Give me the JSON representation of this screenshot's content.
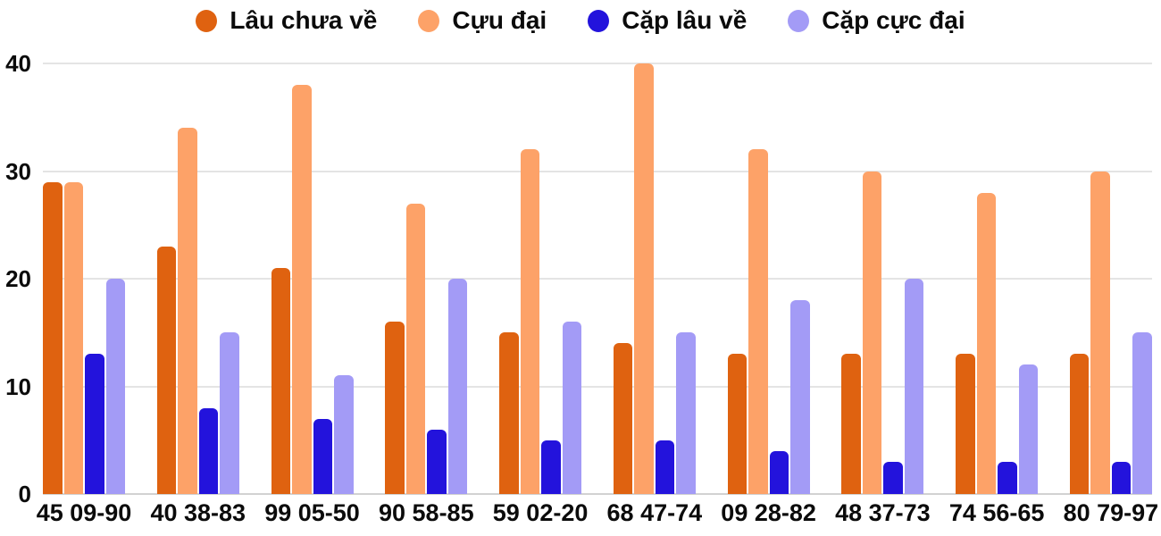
{
  "page": {
    "background": "#ffffff",
    "text_color": "#0b0b0b",
    "gridline_color": "#e4e4e4",
    "baseline_color": "#d2d2d2"
  },
  "chart_data": {
    "type": "bar",
    "title": "",
    "xlabel": "",
    "ylabel": "",
    "categories": [
      "45 09-90",
      "40 38-83",
      "99 05-50",
      "90 58-85",
      "59 02-20",
      "68 47-74",
      "09 28-82",
      "48 37-73",
      "74 56-65",
      "80 79-97"
    ],
    "series": [
      {
        "name": "Lâu chưa về",
        "color": "#df6210",
        "values": [
          29,
          23,
          21,
          16,
          15,
          14,
          13,
          13,
          13,
          13
        ]
      },
      {
        "name": "Cựu đại",
        "color": "#fda268",
        "values": [
          29,
          34,
          38,
          27,
          32,
          40,
          32,
          30,
          28,
          30
        ]
      },
      {
        "name": "Cặp lâu về",
        "color": "#2313dc",
        "values": [
          13,
          8,
          7,
          6,
          5,
          5,
          4,
          3,
          3,
          3
        ]
      },
      {
        "name": "Cặp cực đại",
        "color": "#a39bf6",
        "values": [
          20,
          15,
          11,
          20,
          16,
          15,
          18,
          20,
          12,
          15
        ]
      }
    ],
    "ylim": [
      0,
      40
    ],
    "yticks": [
      0,
      10,
      20,
      30,
      40
    ],
    "grid": true,
    "legend_position": "top"
  }
}
